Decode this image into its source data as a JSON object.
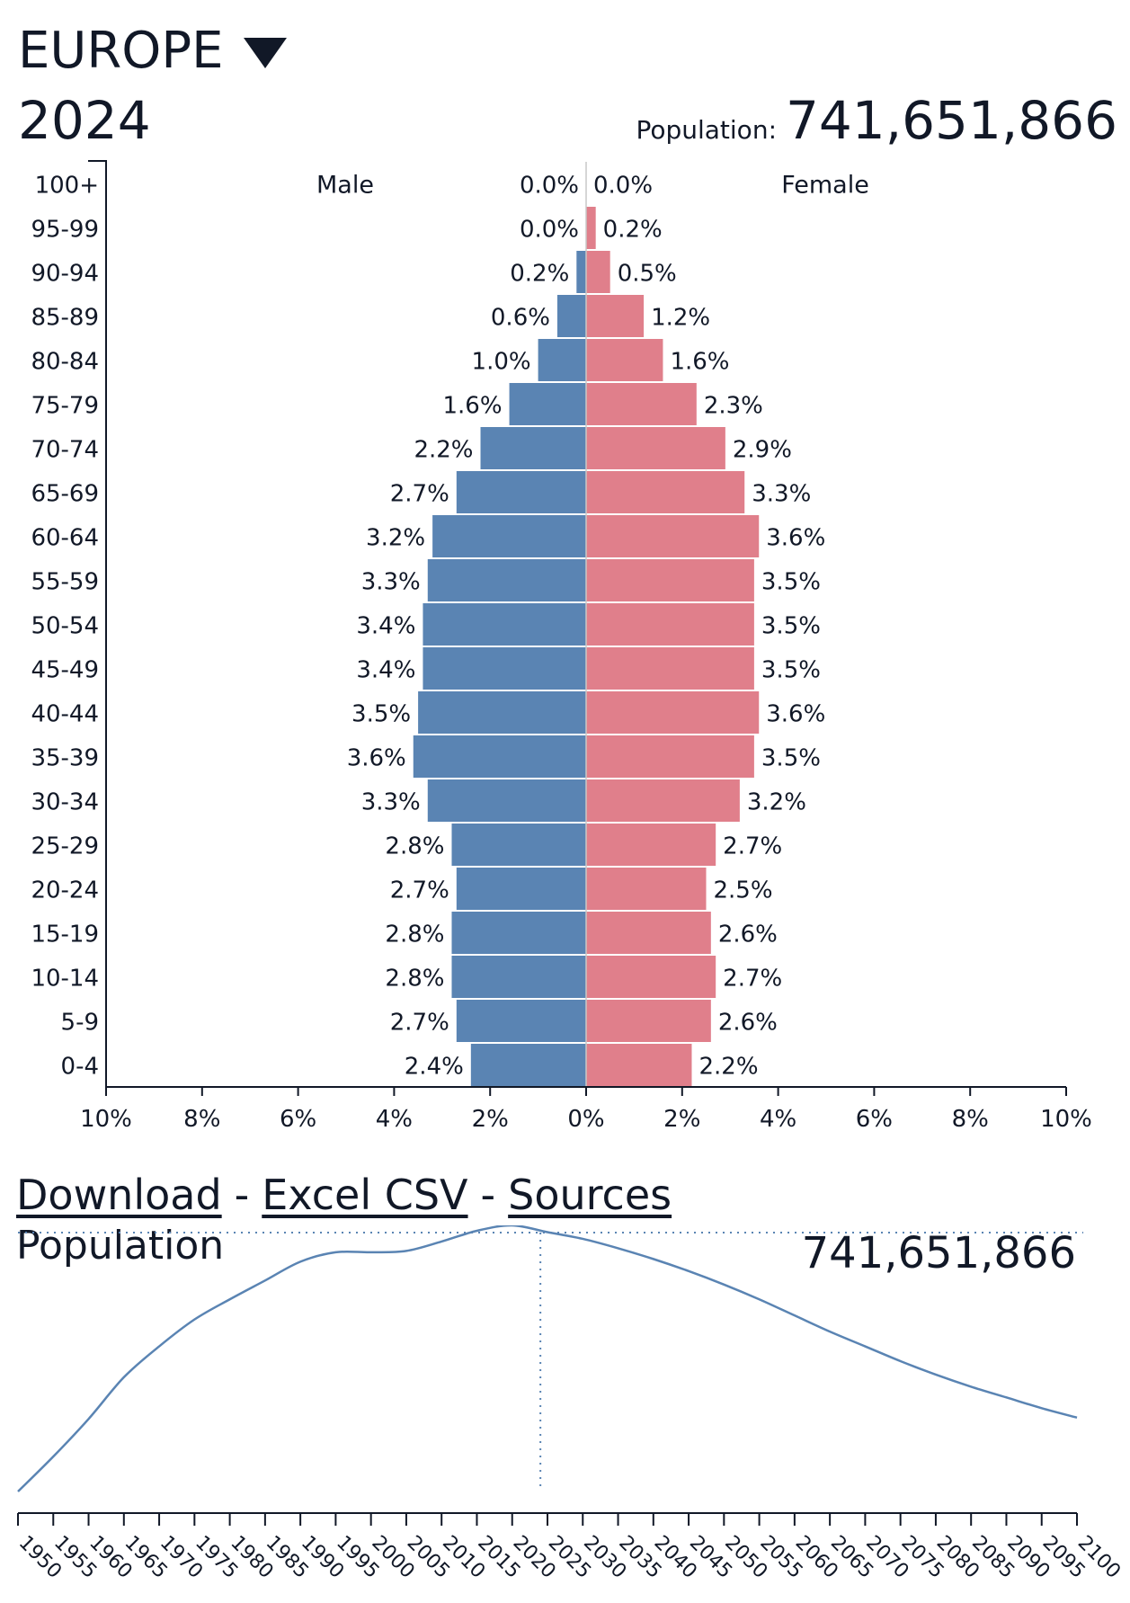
{
  "header": {
    "region": "EUROPE",
    "year": "2024",
    "population_label": "Population:",
    "population_value": "741,651,866"
  },
  "colors": {
    "male": "#5a84b3",
    "female": "#e07f8b",
    "line": "#5a84b3"
  },
  "chart_data": [
    {
      "type": "bar",
      "subtype": "population-pyramid",
      "categories": [
        "100+",
        "95-99",
        "90-94",
        "85-89",
        "80-84",
        "75-79",
        "70-74",
        "65-69",
        "60-64",
        "55-59",
        "50-54",
        "45-49",
        "40-44",
        "35-39",
        "30-34",
        "25-29",
        "20-24",
        "15-19",
        "10-14",
        "5-9",
        "0-4"
      ],
      "series": [
        {
          "name": "Male",
          "values": [
            0.0,
            0.0,
            0.2,
            0.6,
            1.0,
            1.6,
            2.2,
            2.7,
            3.2,
            3.3,
            3.4,
            3.4,
            3.5,
            3.6,
            3.3,
            2.8,
            2.7,
            2.8,
            2.8,
            2.7,
            2.4
          ],
          "labels": [
            "0.0%",
            "0.0%",
            "0.2%",
            "0.6%",
            "1.0%",
            "1.6%",
            "2.2%",
            "2.7%",
            "3.2%",
            "3.3%",
            "3.4%",
            "3.4%",
            "3.5%",
            "3.6%",
            "3.3%",
            "2.8%",
            "2.7%",
            "2.8%",
            "2.8%",
            "2.7%",
            "2.4%"
          ]
        },
        {
          "name": "Female",
          "values": [
            0.0,
            0.2,
            0.5,
            1.2,
            1.6,
            2.3,
            2.9,
            3.3,
            3.6,
            3.5,
            3.5,
            3.5,
            3.6,
            3.5,
            3.2,
            2.7,
            2.5,
            2.6,
            2.7,
            2.6,
            2.2
          ],
          "labels": [
            "0.0%",
            "0.2%",
            "0.5%",
            "1.2%",
            "1.6%",
            "2.3%",
            "2.9%",
            "3.3%",
            "3.6%",
            "3.5%",
            "3.5%",
            "3.5%",
            "3.6%",
            "3.5%",
            "3.2%",
            "2.7%",
            "2.5%",
            "2.6%",
            "2.7%",
            "2.6%",
            "2.2%"
          ]
        }
      ],
      "x_ticks": [
        "10%",
        "8%",
        "6%",
        "4%",
        "2%",
        "0%",
        "2%",
        "4%",
        "6%",
        "8%",
        "10%"
      ],
      "xlim": [
        -10,
        10
      ]
    },
    {
      "type": "line",
      "title": "Population",
      "current_value": "741,651,866",
      "current_year": 2024,
      "x": [
        1950,
        1955,
        1960,
        1965,
        1970,
        1975,
        1980,
        1985,
        1990,
        1995,
        2000,
        2005,
        2010,
        2015,
        2020,
        2025,
        2030,
        2035,
        2040,
        2045,
        2050,
        2055,
        2060,
        2065,
        2070,
        2075,
        2080,
        2085,
        2090,
        2095,
        2100
      ],
      "y": [
        549,
        575,
        603,
        634,
        657,
        677,
        692,
        706,
        720,
        727,
        727,
        728,
        735,
        743,
        747,
        742,
        737,
        730,
        722,
        713,
        703,
        692,
        680,
        668,
        657,
        646,
        636,
        627,
        619,
        611,
        604
      ],
      "y_unit": "millions",
      "x_ticks": [
        "1950",
        "1955",
        "1960",
        "1965",
        "1970",
        "1975",
        "1980",
        "1985",
        "1990",
        "1995",
        "2000",
        "2005",
        "2010",
        "2015",
        "2020",
        "2025",
        "2030",
        "2035",
        "2040",
        "2045",
        "2050",
        "2055",
        "2060",
        "2065",
        "2070",
        "2075",
        "2080",
        "2085",
        "2090",
        "2095",
        "2100"
      ]
    }
  ],
  "links": {
    "download": "Download",
    "excel_csv": "Excel CSV",
    "sources": "Sources",
    "separator": "-"
  }
}
